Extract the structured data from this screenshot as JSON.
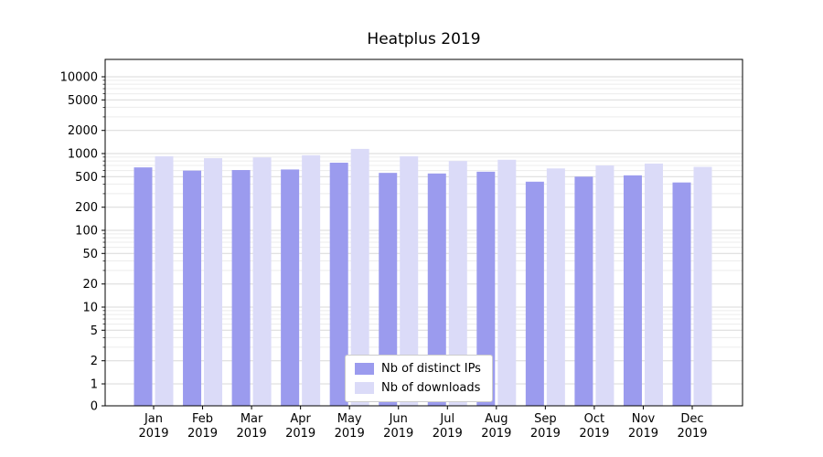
{
  "chart_data": {
    "type": "bar",
    "title": "Heatplus 2019",
    "categories": [
      "Jan",
      "Feb",
      "Mar",
      "Apr",
      "May",
      "Jun",
      "Jul",
      "Aug",
      "Sep",
      "Oct",
      "Nov",
      "Dec"
    ],
    "year": "2019",
    "series": [
      {
        "name": "Nb of distinct IPs",
        "color": "#9b9bee",
        "values": [
          660,
          600,
          610,
          620,
          760,
          560,
          550,
          580,
          430,
          500,
          520,
          420
        ]
      },
      {
        "name": "Nb of downloads",
        "color": "#dbdbf8",
        "values": [
          920,
          870,
          890,
          950,
          1150,
          920,
          800,
          830,
          640,
          700,
          740,
          670
        ]
      }
    ],
    "yscale": "symlog",
    "yticks": [
      0,
      1,
      2,
      5,
      10,
      20,
      50,
      100,
      200,
      500,
      1000,
      2000,
      5000,
      10000
    ],
    "ylim": [
      0,
      10000
    ],
    "grid": true,
    "legend_position": "lower center"
  },
  "colors": {
    "grid_major": "#d9d9d9",
    "grid_minor": "#ececec",
    "spine": "#000000",
    "tick_label": "#000000"
  }
}
